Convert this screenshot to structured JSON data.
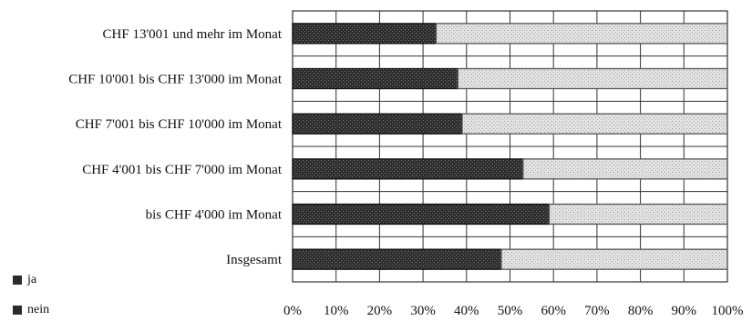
{
  "chart_data": {
    "type": "bar",
    "orientation": "horizontal",
    "stacked": true,
    "percent_stacked": true,
    "categories": [
      "CHF 13'001 und mehr im Monat",
      "CHF 10'001 bis CHF 13'000 im Monat",
      "CHF 7'001 bis CHF 10'000 im Monat",
      "CHF 4'001 bis CHF 7'000 im Monat",
      "bis CHF 4'000 im Monat",
      "Insgesamt"
    ],
    "series": [
      {
        "name": "ja",
        "color": "#2b2b2b",
        "values": [
          33,
          38,
          39,
          53,
          59,
          48
        ]
      },
      {
        "name": "nein",
        "color": "#d9d9d9",
        "values": [
          67,
          62,
          61,
          47,
          41,
          52
        ]
      }
    ],
    "x_ticks": [
      "0%",
      "10%",
      "20%",
      "30%",
      "40%",
      "50%",
      "60%",
      "70%",
      "80%",
      "90%",
      "100%"
    ],
    "xlim": [
      0,
      100
    ],
    "grid": true,
    "legend": {
      "placement": "bottom-left",
      "items": [
        "ja",
        "nein"
      ]
    }
  }
}
